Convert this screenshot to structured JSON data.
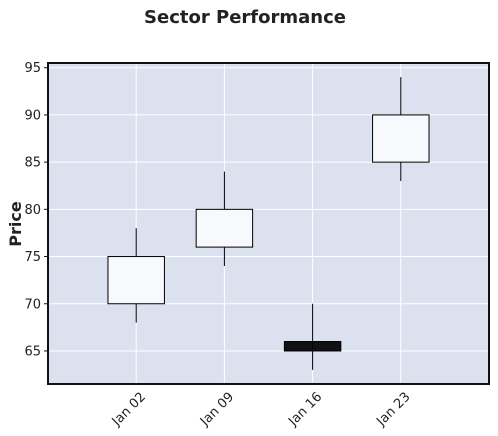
{
  "chart_data": {
    "type": "candlestick",
    "title": "Sector Performance",
    "xlabel": "",
    "ylabel": "Price",
    "categories": [
      "Jan 02",
      "Jan 09",
      "Jan 16",
      "Jan 23"
    ],
    "series": [
      {
        "open": [
          70,
          76,
          66,
          85
        ],
        "high": [
          78,
          84,
          70,
          94
        ],
        "low": [
          68,
          74,
          63,
          83
        ],
        "close": [
          75,
          80,
          65,
          90
        ]
      }
    ],
    "yticks": [
      65,
      70,
      75,
      80,
      85,
      90,
      95
    ],
    "ylim": [
      61.5,
      95.5
    ],
    "xlim": [
      0,
      5
    ],
    "grid": true,
    "legend": "none",
    "colors": {
      "up": "#f8f9fd",
      "down": "#111111",
      "edge": "#000000",
      "wick": "#000000",
      "plot_bg": "#dce1ef",
      "grid": "#ffffff",
      "frame": "#111111"
    }
  }
}
